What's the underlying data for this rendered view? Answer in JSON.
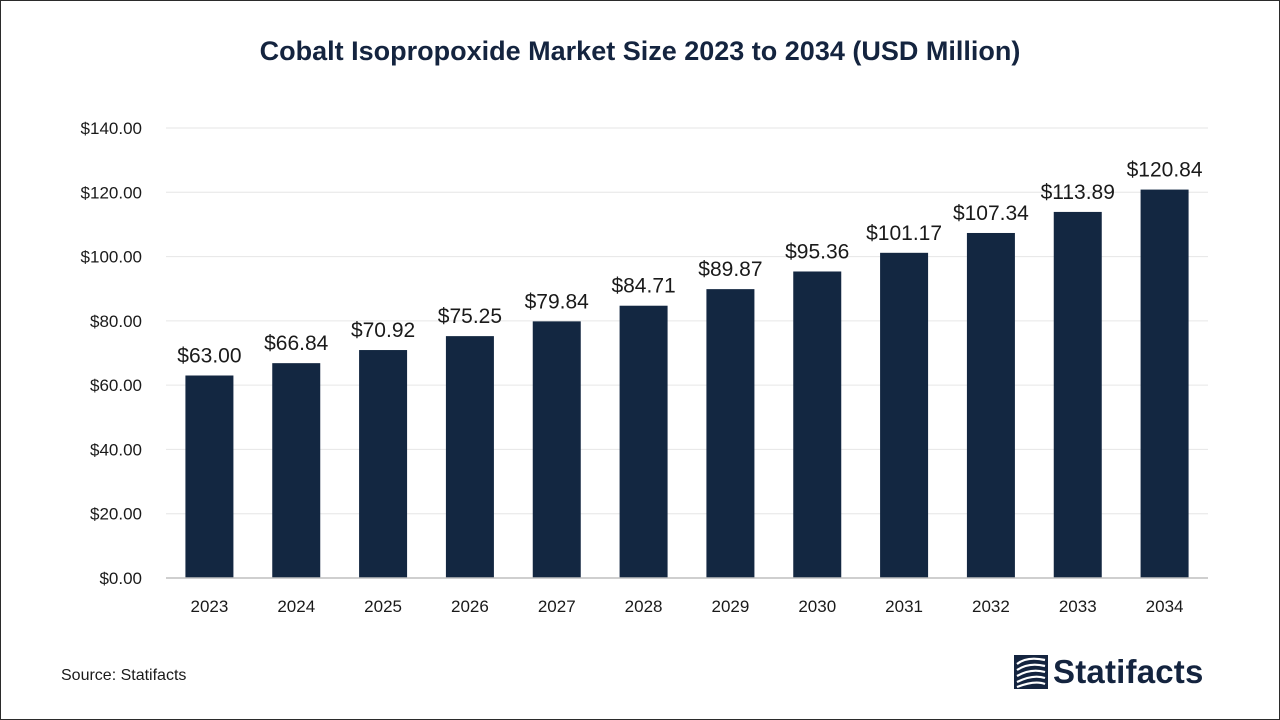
{
  "colors": {
    "bar": "#132741",
    "title": "#14243f",
    "grid": "#e6e6e6",
    "axis_line": "#bfbfbf",
    "text": "#1a1a1a"
  },
  "source": "Source: Statifacts",
  "logo": {
    "text": "Statifacts",
    "icon": "statifacts-logo-mark"
  },
  "chart_data": {
    "type": "bar",
    "title": "Cobalt Isopropoxide Market Size 2023 to 2034 (USD Million)",
    "xlabel": "",
    "ylabel": "",
    "categories": [
      "2023",
      "2024",
      "2025",
      "2026",
      "2027",
      "2028",
      "2029",
      "2030",
      "2031",
      "2032",
      "2033",
      "2034"
    ],
    "values": [
      63.0,
      66.84,
      70.92,
      75.25,
      79.84,
      84.71,
      89.87,
      95.36,
      101.17,
      107.34,
      113.89,
      120.84
    ],
    "data_labels": [
      "$63.00",
      "$66.84",
      "$70.92",
      "$75.25",
      "$79.84",
      "$84.71",
      "$89.87",
      "$95.36",
      "$101.17",
      "$107.34",
      "$113.89",
      "$120.84"
    ],
    "ylim": [
      0,
      140
    ],
    "yticks": [
      0,
      20,
      40,
      60,
      80,
      100,
      120,
      140
    ],
    "ytick_labels": [
      "$0.00",
      "$20.00",
      "$40.00",
      "$60.00",
      "$80.00",
      "$100.00",
      "$120.00",
      "$140.00"
    ],
    "grid": true,
    "legend": "none"
  }
}
